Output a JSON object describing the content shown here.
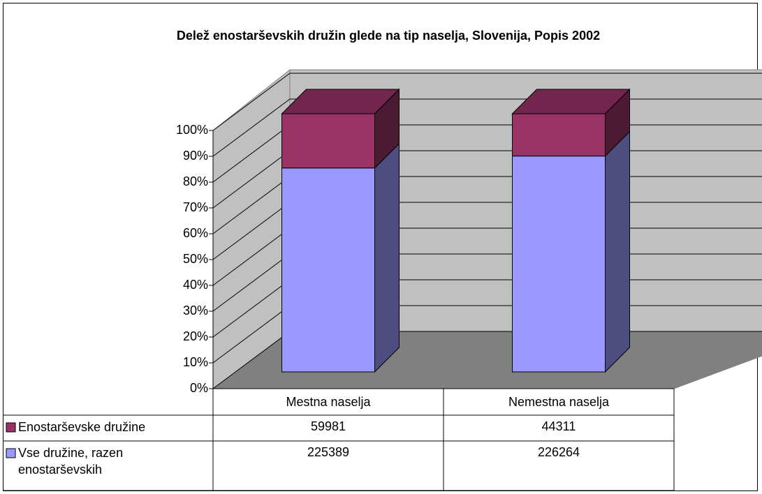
{
  "chart_data": {
    "type": "bar",
    "stacking": "percent",
    "title": "Delež enostarševskih družin glede na tip naselja, Slovenija, Popis 2002",
    "categories": [
      "Mestna naselja",
      "Nemestna naselja"
    ],
    "series": [
      {
        "name": "Vse družine, razen enostarševskih",
        "color": "#9999ff",
        "values": [
          225389,
          226264
        ]
      },
      {
        "name": "Enostarševske družine",
        "color": "#993366",
        "values": [
          59981,
          44311
        ]
      }
    ],
    "ylim": [
      0,
      100
    ],
    "yticks": [
      {
        "value": 0,
        "label": "0%"
      },
      {
        "value": 10,
        "label": "10%"
      },
      {
        "value": 20,
        "label": "20%"
      },
      {
        "value": 30,
        "label": "30%"
      },
      {
        "value": 40,
        "label": "40%"
      },
      {
        "value": 50,
        "label": "50%"
      },
      {
        "value": 60,
        "label": "60%"
      },
      {
        "value": 70,
        "label": "70%"
      },
      {
        "value": 80,
        "label": "80%"
      },
      {
        "value": 90,
        "label": "90%"
      },
      {
        "value": 100,
        "label": "100%"
      }
    ],
    "grid": true
  }
}
